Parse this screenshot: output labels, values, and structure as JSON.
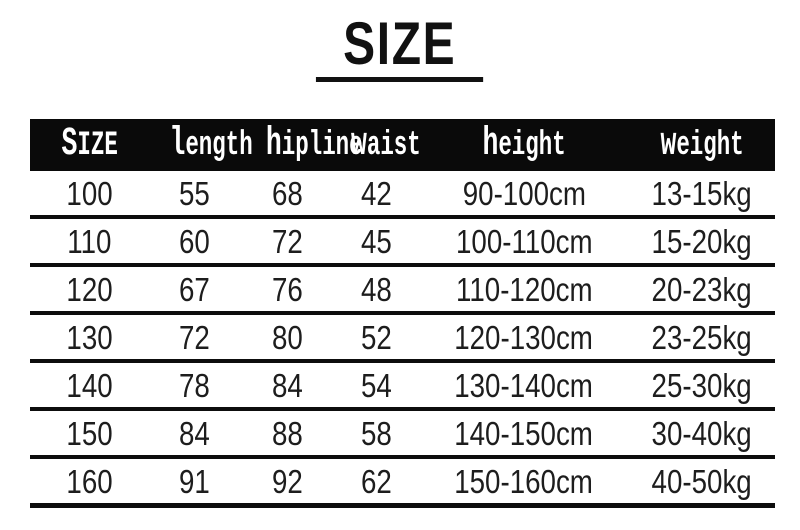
{
  "chart_data": {
    "type": "table",
    "title": "SIZE",
    "columns": [
      {
        "key": "size",
        "label": "SIZE"
      },
      {
        "key": "length",
        "label": "length"
      },
      {
        "key": "hipline",
        "label": "hipline"
      },
      {
        "key": "waist",
        "label": "waist"
      },
      {
        "key": "height",
        "label": "height"
      },
      {
        "key": "weight",
        "label": "weight"
      }
    ],
    "rows": [
      [
        "100",
        "55",
        "68",
        "42",
        "90-100cm",
        "13-15kg"
      ],
      [
        "110",
        "60",
        "72",
        "45",
        "100-110cm",
        "15-20kg"
      ],
      [
        "120",
        "67",
        "76",
        "48",
        "110-120cm",
        "20-23kg"
      ],
      [
        "130",
        "72",
        "80",
        "52",
        "120-130cm",
        "23-25kg"
      ],
      [
        "140",
        "78",
        "84",
        "54",
        "130-140cm",
        "25-30kg"
      ],
      [
        "150",
        "84",
        "88",
        "58",
        "140-150cm",
        "30-40kg"
      ],
      [
        "160",
        "91",
        "92",
        "62",
        "150-160cm",
        "40-50kg"
      ]
    ]
  },
  "colors": {
    "background": "#ffffff",
    "title_text": "#111111",
    "header_bg": "#0a0a0a",
    "header_text": "#ffffff",
    "body_text": "#1d1d1d",
    "row_line": "#0d0d0d"
  }
}
